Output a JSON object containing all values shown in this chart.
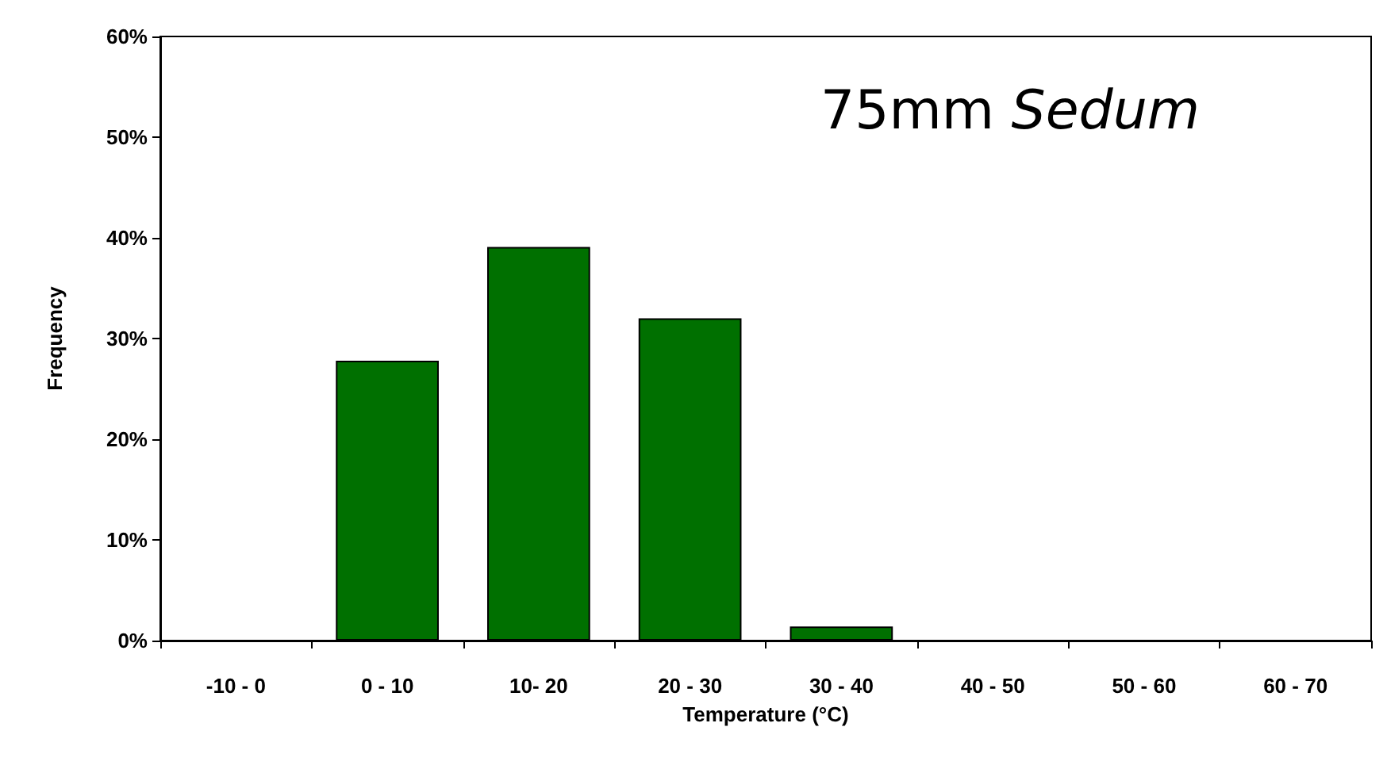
{
  "chart_data": {
    "type": "bar",
    "xlabel": "Temperature (°C)",
    "ylabel": "Frequency",
    "annotations": [
      "75mm Sedum"
    ],
    "categories": [
      "-10 - 0",
      "0 - 10",
      "10- 20",
      "20 - 30",
      "30 - 40",
      "40 - 50",
      "50 - 60",
      "60 - 70"
    ],
    "values": [
      0,
      27.8,
      39.1,
      32,
      1.4,
      0,
      0,
      0
    ],
    "color": "#007000",
    "ylim": [
      0,
      60
    ],
    "yticks": [
      {
        "value": 0,
        "label": "0%"
      },
      {
        "value": 10,
        "label": "10%"
      },
      {
        "value": 20,
        "label": "20%"
      },
      {
        "value": 30,
        "label": "30%"
      },
      {
        "value": 40,
        "label": "40%"
      },
      {
        "value": 50,
        "label": "50%"
      },
      {
        "value": 60,
        "label": "60%"
      }
    ],
    "grid": false
  }
}
